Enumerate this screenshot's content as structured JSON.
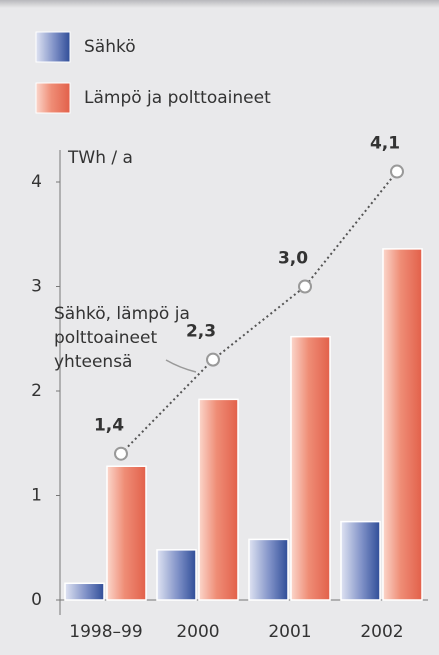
{
  "chart_data": {
    "type": "bar",
    "y_label": "TWh / a",
    "categories": [
      "1998–99",
      "2000",
      "2001",
      "2002"
    ],
    "series": [
      {
        "name": "Sähkö",
        "color": "#3b5ba5",
        "values": [
          0.16,
          0.48,
          0.58,
          0.75
        ]
      },
      {
        "name": "Lämpö ja polttoaineet",
        "color": "#e8705a",
        "values": [
          1.28,
          1.92,
          2.52,
          3.36
        ]
      },
      {
        "type": "line",
        "color": "#555555",
        "values": [
          1.4,
          2.3,
          3.0,
          4.1
        ],
        "value_labels": [
          "1,4",
          "2,3",
          "3,0",
          "4,1"
        ]
      }
    ],
    "annotation": [
      "Sähkö, lämpö ja",
      "polttoaineet",
      "yhteensä"
    ],
    "ylim": [
      0,
      4
    ],
    "yticks": [
      0,
      1,
      2,
      3,
      4
    ]
  }
}
